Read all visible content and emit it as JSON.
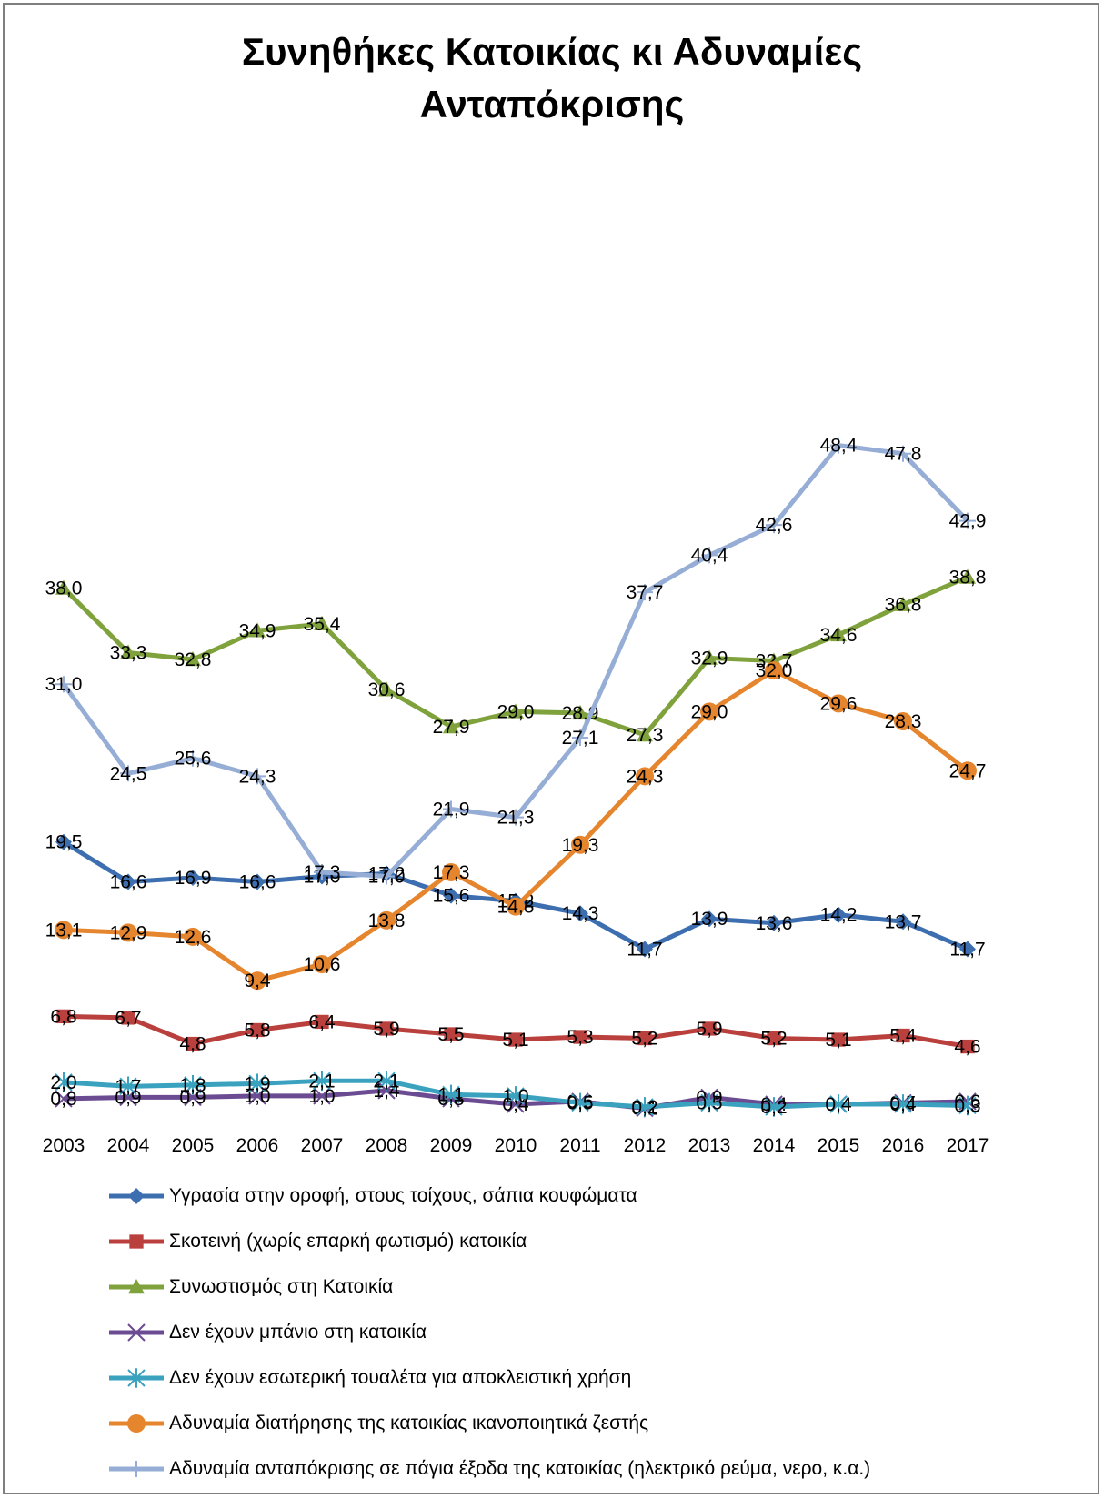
{
  "chart_data": {
    "type": "line",
    "title": [
      "Συνηθήκες Κατοικίας κι Αδυναμίες",
      "Ανταπόκρισης"
    ],
    "x": [
      "2003",
      "2004",
      "2005",
      "2006",
      "2007",
      "2008",
      "2009",
      "2010",
      "2011",
      "2012",
      "2013",
      "2014",
      "2015",
      "2016",
      "2017"
    ],
    "ylim": [
      0,
      50
    ],
    "grid": false,
    "legend_position": "bottom",
    "series": [
      {
        "name": "Υγρασία στην οροφή, στους τοίχους, σάπια κουφώματα",
        "color": "#3d6fb0",
        "marker": "diamond",
        "values": [
          19.5,
          16.6,
          16.9,
          16.6,
          17.0,
          17.2,
          15.6,
          15.2,
          14.3,
          11.7,
          13.9,
          13.6,
          14.2,
          13.7,
          11.7
        ],
        "labels": [
          "19,5",
          "16,6",
          "16,9",
          "16,6",
          "17,0",
          "17,2",
          "15,6",
          "15,2",
          "14,3",
          "11,7",
          "13,9",
          "13,6",
          "14,2",
          "13,7",
          "11,7"
        ]
      },
      {
        "name": "Σκοτεινή (χωρίς επαρκή φωτισμό) κατοικία",
        "color": "#b9403c",
        "marker": "square",
        "values": [
          6.8,
          6.7,
          4.8,
          5.8,
          6.4,
          5.9,
          5.5,
          5.1,
          5.3,
          5.2,
          5.9,
          5.2,
          5.1,
          5.4,
          4.6
        ],
        "labels": [
          "6,8",
          "6,7",
          "4,8",
          "5,8",
          "6,4",
          "5,9",
          "5,5",
          "5,1",
          "5,3",
          "5,2",
          "5,9",
          "5,2",
          "5,1",
          "5,4",
          "4,6"
        ]
      },
      {
        "name": "Συνωστισμός στη Κατοικία",
        "color": "#7fa23c",
        "marker": "triangle",
        "values": [
          38.0,
          33.3,
          32.8,
          34.9,
          35.4,
          30.6,
          27.9,
          29.0,
          28.9,
          27.3,
          32.9,
          32.7,
          34.6,
          36.8,
          38.8
        ],
        "labels": [
          "38,0",
          "33,3",
          "32,8",
          "34,9",
          "35,4",
          "30,6",
          "27,9",
          "29,0",
          "28,9",
          "27,3",
          "32,9",
          "32,7",
          "34,6",
          "36,8",
          "38,8"
        ]
      },
      {
        "name": "Δεν έχουν μπάνιο στη κατοικία",
        "color": "#6b4b92",
        "marker": "x",
        "values": [
          0.8,
          0.9,
          0.9,
          1.0,
          1.0,
          1.4,
          0.8,
          0.4,
          0.6,
          0.1,
          0.9,
          0.4,
          0.4,
          0.5,
          0.6
        ],
        "labels": [
          "0,8",
          "0,9",
          "0,9",
          "1,0",
          "1,0",
          "1,4",
          "0,8",
          "0,4",
          "0,6",
          "0,1",
          "0,9",
          "0,4",
          "0,4",
          "0,5",
          "0,6"
        ]
      },
      {
        "name": "Δεν έχουν εσωτερική τουαλέτα για αποκλειστική χρήση",
        "color": "#3aa2bf",
        "marker": "asterisk",
        "values": [
          2.0,
          1.7,
          1.8,
          1.9,
          2.1,
          2.1,
          1.1,
          1.0,
          0.5,
          0.2,
          0.5,
          0.2,
          0.4,
          0.4,
          0.3
        ],
        "labels": [
          "2,0",
          "1,7",
          "1,8",
          "1,9",
          "2,1",
          "2,1",
          "1,1",
          "1,0",
          "0,5",
          "0,2",
          "0,5",
          "0,2",
          "0,4",
          "0,4",
          "0,3"
        ]
      },
      {
        "name": "Αδυναμία διατήρησης της κατοικίας ικανοποιητικά ζεστής",
        "color": "#e5852e",
        "marker": "circle",
        "values": [
          13.1,
          12.9,
          12.6,
          9.4,
          10.6,
          13.8,
          17.3,
          14.8,
          19.3,
          24.3,
          29.0,
          32.0,
          29.6,
          28.3,
          24.7
        ],
        "labels": [
          "13,1",
          "12,9",
          "12,6",
          "9,4",
          "10,6",
          "13,8",
          "17,3",
          "14,8",
          "19,3",
          "24,3",
          "29,0",
          "32,0",
          "29,6",
          "28,3",
          "24,7"
        ]
      },
      {
        "name": "Αδυναμία ανταπόκρισης σε πάγια έξοδα της κατοικίας (ηλεκτρικό ρεύμα, νερο, κ.α.)",
        "color": "#96aed6",
        "marker": "plus",
        "values": [
          31.0,
          24.5,
          25.6,
          24.3,
          17.3,
          17.0,
          21.9,
          21.3,
          27.1,
          37.7,
          40.4,
          42.6,
          48.4,
          47.8,
          42.9
        ],
        "labels": [
          "31,0",
          "24,5",
          "25,6",
          "24,3",
          "17,3",
          "17,0",
          "21,9",
          "21,3",
          "27,1",
          "37,7",
          "40,4",
          "42,6",
          "48,4",
          "47,8",
          "42,9"
        ]
      }
    ]
  }
}
